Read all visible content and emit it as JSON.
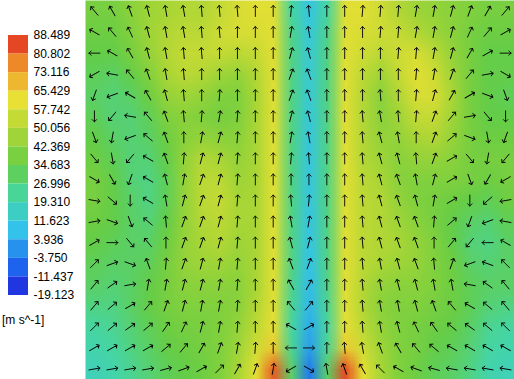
{
  "chart_data": {
    "type": "heatmap",
    "tick_labels": false,
    "colorbar": {
      "label": "[m s^-1]",
      "range": [
        -19.123,
        88.489
      ],
      "ticks": [
        88.489,
        80.802,
        73.116,
        65.429,
        57.742,
        50.056,
        42.369,
        34.683,
        26.996,
        {
          "value": 19.31,
          "label": "19.310"
        },
        11.623,
        3.936,
        {
          "value": -3.75,
          "label": "-3.750"
        },
        -11.437,
        -19.123
      ]
    },
    "cells": [
      [
        38,
        38,
        42,
        46,
        48,
        50,
        50,
        54,
        58,
        60,
        60,
        22,
        10,
        22,
        60,
        60,
        56,
        50,
        46,
        44,
        42,
        40,
        38,
        38
      ],
      [
        36,
        36,
        40,
        46,
        50,
        52,
        52,
        56,
        58,
        58,
        60,
        25,
        11,
        25,
        60,
        58,
        56,
        54,
        50,
        46,
        42,
        38,
        36,
        36
      ],
      [
        34,
        34,
        38,
        44,
        50,
        54,
        54,
        54,
        52,
        54,
        60,
        26,
        12,
        26,
        60,
        56,
        52,
        56,
        58,
        52,
        44,
        38,
        34,
        34
      ],
      [
        32,
        30,
        34,
        40,
        48,
        52,
        50,
        46,
        44,
        50,
        60,
        26,
        12,
        26,
        60,
        52,
        46,
        54,
        60,
        56,
        46,
        38,
        34,
        34
      ],
      [
        30,
        28,
        30,
        36,
        44,
        46,
        44,
        40,
        40,
        48,
        60,
        26,
        12,
        26,
        60,
        50,
        42,
        50,
        58,
        58,
        48,
        38,
        34,
        32
      ],
      [
        32,
        28,
        28,
        32,
        40,
        42,
        40,
        38,
        40,
        48,
        60,
        26,
        11,
        26,
        60,
        50,
        42,
        46,
        54,
        54,
        46,
        38,
        34,
        34
      ],
      [
        34,
        30,
        28,
        30,
        36,
        42,
        44,
        42,
        42,
        48,
        60,
        26,
        10,
        26,
        60,
        50,
        44,
        44,
        48,
        50,
        44,
        38,
        36,
        36
      ],
      [
        36,
        32,
        28,
        28,
        34,
        44,
        50,
        48,
        44,
        48,
        60,
        26,
        10,
        26,
        60,
        50,
        46,
        42,
        44,
        44,
        42,
        38,
        38,
        38
      ],
      [
        38,
        34,
        28,
        26,
        32,
        44,
        52,
        52,
        46,
        48,
        60,
        26,
        10,
        26,
        60,
        52,
        48,
        42,
        40,
        40,
        40,
        38,
        36,
        38
      ],
      [
        38,
        34,
        30,
        26,
        32,
        44,
        52,
        54,
        48,
        48,
        60,
        26,
        10,
        26,
        60,
        52,
        50,
        44,
        40,
        38,
        36,
        34,
        32,
        36
      ],
      [
        36,
        34,
        30,
        28,
        34,
        44,
        50,
        52,
        48,
        48,
        60,
        26,
        9,
        26,
        60,
        52,
        50,
        46,
        42,
        38,
        34,
        30,
        28,
        32
      ],
      [
        34,
        32,
        30,
        30,
        36,
        44,
        48,
        50,
        46,
        48,
        60,
        26,
        9,
        26,
        60,
        52,
        50,
        48,
        44,
        40,
        34,
        28,
        26,
        30
      ],
      [
        32,
        30,
        30,
        32,
        38,
        44,
        46,
        46,
        44,
        48,
        60,
        26,
        8,
        26,
        60,
        52,
        48,
        46,
        44,
        40,
        36,
        30,
        28,
        30
      ],
      [
        30,
        28,
        30,
        34,
        38,
        42,
        42,
        42,
        42,
        48,
        60,
        25,
        7,
        25,
        60,
        50,
        44,
        42,
        42,
        40,
        36,
        32,
        30,
        30
      ],
      [
        26,
        26,
        30,
        34,
        38,
        40,
        40,
        40,
        42,
        50,
        60,
        24,
        6,
        24,
        60,
        50,
        42,
        40,
        40,
        38,
        36,
        32,
        28,
        26
      ],
      [
        22,
        24,
        28,
        32,
        36,
        38,
        38,
        40,
        44,
        52,
        62,
        22,
        4,
        22,
        62,
        52,
        44,
        40,
        38,
        36,
        34,
        30,
        24,
        22
      ],
      [
        20,
        22,
        26,
        30,
        34,
        36,
        38,
        40,
        46,
        56,
        66,
        24,
        2,
        24,
        66,
        56,
        46,
        40,
        38,
        34,
        32,
        28,
        22,
        20
      ],
      [
        18,
        20,
        24,
        28,
        32,
        34,
        36,
        40,
        48,
        60,
        82,
        30,
        -4,
        30,
        84,
        60,
        48,
        40,
        36,
        32,
        30,
        26,
        20,
        18
      ]
    ],
    "vectors": [
      [
        320,
        330,
        340,
        345,
        350,
        350,
        355,
        355,
        355,
        0,
        0,
        5,
        355,
        0,
        0,
        5,
        5,
        5,
        10,
        10,
        15,
        20,
        30,
        40
      ],
      [
        300,
        320,
        335,
        345,
        350,
        350,
        355,
        355,
        0,
        0,
        0,
        10,
        350,
        0,
        0,
        0,
        5,
        5,
        10,
        10,
        15,
        25,
        40,
        60
      ],
      [
        270,
        300,
        330,
        345,
        350,
        355,
        355,
        0,
        0,
        0,
        0,
        15,
        345,
        0,
        0,
        0,
        0,
        5,
        5,
        10,
        15,
        30,
        60,
        90
      ],
      [
        240,
        280,
        320,
        340,
        350,
        355,
        0,
        0,
        0,
        0,
        0,
        20,
        340,
        0,
        0,
        0,
        0,
        0,
        5,
        10,
        20,
        40,
        80,
        120
      ],
      [
        200,
        250,
        300,
        330,
        345,
        355,
        0,
        5,
        0,
        0,
        0,
        20,
        340,
        0,
        0,
        0,
        355,
        0,
        5,
        15,
        30,
        60,
        110,
        160
      ],
      [
        180,
        220,
        280,
        320,
        340,
        355,
        5,
        10,
        5,
        0,
        0,
        15,
        345,
        0,
        0,
        355,
        350,
        355,
        5,
        20,
        40,
        80,
        140,
        180
      ],
      [
        160,
        190,
        250,
        310,
        340,
        0,
        10,
        15,
        5,
        0,
        0,
        10,
        350,
        0,
        0,
        355,
        345,
        350,
        0,
        20,
        50,
        110,
        170,
        200
      ],
      [
        140,
        170,
        220,
        300,
        340,
        5,
        15,
        15,
        5,
        0,
        0,
        5,
        355,
        0,
        0,
        355,
        345,
        345,
        355,
        20,
        60,
        140,
        190,
        220
      ],
      [
        120,
        150,
        200,
        300,
        345,
        10,
        20,
        15,
        5,
        0,
        0,
        0,
        0,
        0,
        0,
        355,
        345,
        340,
        350,
        15,
        60,
        160,
        210,
        240
      ],
      [
        100,
        130,
        180,
        300,
        350,
        15,
        20,
        15,
        5,
        0,
        0,
        355,
        5,
        0,
        0,
        355,
        345,
        340,
        345,
        10,
        60,
        180,
        230,
        260
      ],
      [
        80,
        110,
        160,
        310,
        355,
        20,
        20,
        15,
        5,
        0,
        0,
        350,
        10,
        0,
        0,
        355,
        345,
        340,
        340,
        5,
        50,
        200,
        250,
        280
      ],
      [
        60,
        90,
        140,
        320,
        0,
        20,
        20,
        15,
        5,
        0,
        0,
        345,
        15,
        0,
        0,
        355,
        345,
        340,
        340,
        0,
        40,
        220,
        270,
        300
      ],
      [
        45,
        70,
        110,
        340,
        5,
        20,
        15,
        10,
        5,
        0,
        0,
        340,
        20,
        0,
        0,
        355,
        350,
        345,
        340,
        355,
        20,
        250,
        290,
        315
      ],
      [
        40,
        55,
        80,
        10,
        10,
        15,
        15,
        10,
        5,
        0,
        0,
        330,
        30,
        0,
        0,
        355,
        350,
        345,
        345,
        350,
        350,
        280,
        305,
        320
      ],
      [
        40,
        50,
        60,
        40,
        20,
        15,
        10,
        10,
        5,
        0,
        0,
        320,
        40,
        0,
        0,
        355,
        350,
        350,
        345,
        340,
        320,
        300,
        310,
        320
      ],
      [
        45,
        50,
        55,
        50,
        35,
        25,
        15,
        10,
        5,
        0,
        0,
        300,
        60,
        0,
        0,
        355,
        350,
        345,
        335,
        325,
        310,
        305,
        310,
        315
      ],
      [
        60,
        60,
        60,
        60,
        50,
        40,
        30,
        20,
        10,
        5,
        0,
        270,
        90,
        0,
        355,
        350,
        340,
        330,
        320,
        310,
        300,
        300,
        300,
        300
      ],
      [
        80,
        80,
        80,
        80,
        75,
        70,
        60,
        45,
        30,
        20,
        10,
        240,
        120,
        350,
        340,
        330,
        315,
        300,
        290,
        285,
        280,
        280,
        280,
        280
      ]
    ]
  }
}
